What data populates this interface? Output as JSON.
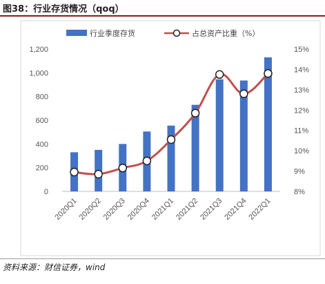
{
  "figure": {
    "title": "图38：行业存货情况（qoq）",
    "source": "资料来源：财信证券，wind"
  },
  "colors": {
    "bar": "#4472c4",
    "line": "#c0504d",
    "rule": "#8b1a1a"
  },
  "chart_data": {
    "type": "bar",
    "categories": [
      "2020Q1",
      "2020Q2",
      "2020Q3",
      "2020Q4",
      "2021Q1",
      "2021Q2",
      "2021Q3",
      "2021Q4",
      "2022Q1"
    ],
    "series": [
      {
        "name": "行业季度存货",
        "type": "bar",
        "axis": "left",
        "values": [
          330,
          350,
          400,
          505,
          555,
          730,
          945,
          935,
          1130
        ]
      },
      {
        "name": "占总资产比重（%）",
        "type": "line",
        "axis": "right",
        "marker": "circle",
        "values": [
          8.95,
          8.85,
          9.15,
          9.5,
          10.55,
          11.85,
          13.75,
          12.8,
          13.8
        ]
      }
    ],
    "ylim_left": [
      0,
      1200
    ],
    "yticks_left": [
      "0",
      "200",
      "400",
      "600",
      "800",
      "1,000",
      "1,200"
    ],
    "ylim_right": [
      8,
      15
    ],
    "yticks_right": [
      "8%",
      "9%",
      "10%",
      "11%",
      "12%",
      "13%",
      "14%",
      "15%"
    ],
    "legend": "top-center",
    "grid": false
  }
}
